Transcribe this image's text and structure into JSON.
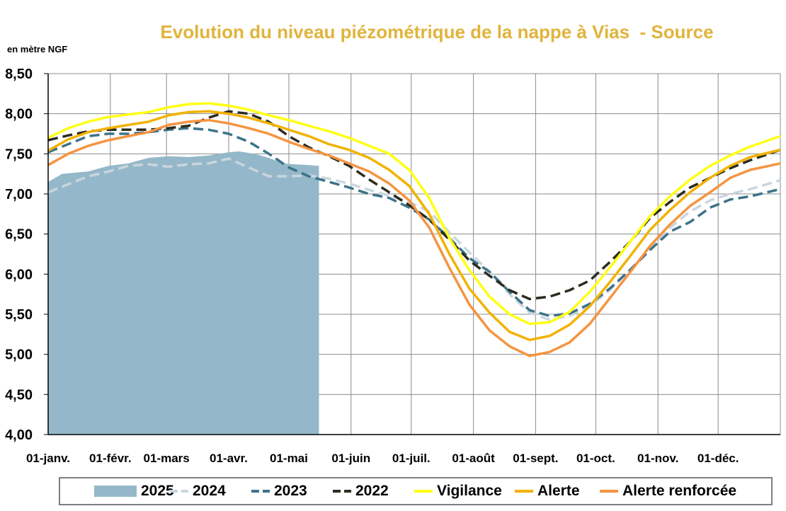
{
  "title": "Evolution du niveau piézométrique de la nappe à Vias  - Source",
  "unit_label": "en mètre NGF",
  "legend": [
    {
      "label": "2025",
      "color": "#94b8c9",
      "style": "area"
    },
    {
      "label": "2024",
      "color": "#c9d6de",
      "style": "dashed"
    },
    {
      "label": "2023",
      "color": "#3d7388",
      "style": "dashed"
    },
    {
      "label": "2022",
      "color": "#2b2b1f",
      "style": "dashed"
    },
    {
      "label": "Vigilance",
      "color": "#ffff14",
      "style": "solid"
    },
    {
      "label": "Alerte",
      "color": "#f2b200",
      "style": "solid"
    },
    {
      "label": "Alerte renforcée",
      "color": "#f59440",
      "style": "solid"
    }
  ],
  "chart_data": {
    "type": "line",
    "title": "Evolution du niveau piézométrique de la nappe à Vias  - Source",
    "ylabel": "en mètre NGF",
    "xlabel": "",
    "ylim": [
      4.0,
      8.5
    ],
    "xlim": [
      0,
      365
    ],
    "grid": true,
    "legend_position": "bottom",
    "y_ticks": [
      "4,00",
      "4,50",
      "5,00",
      "5,50",
      "6,00",
      "6,50",
      "7,00",
      "7,50",
      "8,00",
      "8,50"
    ],
    "x_ticks": [
      {
        "day": 0,
        "label": "01-janv."
      },
      {
        "day": 31,
        "label": "01-févr."
      },
      {
        "day": 59,
        "label": "01-mars"
      },
      {
        "day": 90,
        "label": "01-avr."
      },
      {
        "day": 120,
        "label": "01-mai"
      },
      {
        "day": 151,
        "label": "01-juin"
      },
      {
        "day": 181,
        "label": "01-juil."
      },
      {
        "day": 212,
        "label": "01-août"
      },
      {
        "day": 243,
        "label": "01-sept."
      },
      {
        "day": 273,
        "label": "01-oct."
      },
      {
        "day": 304,
        "label": "01-nov."
      },
      {
        "day": 334,
        "label": "01-déc."
      }
    ],
    "series": [
      {
        "name": "2025",
        "type": "area",
        "color": "#94b8c9",
        "x": [
          0,
          7,
          20,
          30,
          40,
          50,
          60,
          70,
          80,
          90,
          95,
          103,
          110,
          117,
          123,
          130,
          135
        ],
        "y": [
          7.15,
          7.25,
          7.28,
          7.35,
          7.38,
          7.45,
          7.47,
          7.46,
          7.48,
          7.52,
          7.53,
          7.5,
          7.45,
          7.38,
          7.37,
          7.36,
          7.35
        ]
      },
      {
        "name": "2024",
        "type": "line",
        "dash": "dashed",
        "color": "#c9d6de",
        "x": [
          0,
          10,
          20,
          30,
          40,
          50,
          60,
          70,
          80,
          90,
          100,
          110,
          120,
          130,
          140,
          150,
          160,
          170,
          180,
          190,
          200,
          210,
          220,
          230,
          240,
          250,
          260,
          270,
          280,
          290,
          300,
          310,
          320,
          330,
          340,
          350,
          365
        ],
        "y": [
          7.02,
          7.12,
          7.22,
          7.28,
          7.35,
          7.37,
          7.34,
          7.37,
          7.38,
          7.44,
          7.33,
          7.22,
          7.22,
          7.23,
          7.19,
          7.13,
          7.05,
          6.98,
          6.9,
          6.78,
          6.52,
          6.27,
          6.03,
          5.75,
          5.52,
          5.43,
          5.48,
          5.6,
          5.8,
          6.05,
          6.32,
          6.58,
          6.78,
          6.92,
          7.0,
          7.06,
          7.17
        ]
      },
      {
        "name": "2023",
        "type": "line",
        "dash": "dashed",
        "color": "#3d7388",
        "x": [
          0,
          10,
          20,
          30,
          40,
          50,
          60,
          70,
          80,
          90,
          100,
          110,
          120,
          130,
          140,
          150,
          160,
          170,
          180,
          190,
          200,
          210,
          220,
          230,
          240,
          250,
          260,
          270,
          280,
          290,
          300,
          310,
          320,
          330,
          340,
          350,
          365
        ],
        "y": [
          7.52,
          7.62,
          7.72,
          7.75,
          7.75,
          7.77,
          7.8,
          7.82,
          7.8,
          7.75,
          7.65,
          7.5,
          7.33,
          7.22,
          7.15,
          7.08,
          7.0,
          6.95,
          6.83,
          6.68,
          6.45,
          6.2,
          6.03,
          5.78,
          5.55,
          5.48,
          5.51,
          5.63,
          5.82,
          6.05,
          6.3,
          6.53,
          6.65,
          6.83,
          6.93,
          6.97,
          7.06
        ]
      },
      {
        "name": "2022",
        "type": "line",
        "dash": "dashed",
        "color": "#2b2b1f",
        "x": [
          0,
          10,
          20,
          30,
          40,
          50,
          60,
          70,
          80,
          90,
          100,
          110,
          120,
          130,
          140,
          150,
          160,
          170,
          180,
          190,
          200,
          210,
          220,
          230,
          240,
          250,
          260,
          270,
          280,
          290,
          300,
          310,
          320,
          330,
          340,
          350,
          365
        ],
        "y": [
          7.67,
          7.73,
          7.78,
          7.8,
          7.8,
          7.8,
          7.82,
          7.85,
          7.95,
          8.03,
          8.0,
          7.9,
          7.72,
          7.58,
          7.47,
          7.35,
          7.18,
          7.02,
          6.86,
          6.68,
          6.43,
          6.17,
          5.98,
          5.8,
          5.69,
          5.72,
          5.8,
          5.92,
          6.15,
          6.4,
          6.7,
          6.9,
          7.08,
          7.2,
          7.32,
          7.42,
          7.55
        ]
      },
      {
        "name": "Vigilance",
        "type": "line",
        "dash": "solid",
        "color": "#ffff14",
        "x": [
          0,
          10,
          20,
          30,
          40,
          50,
          60,
          70,
          80,
          90,
          100,
          110,
          120,
          130,
          140,
          150,
          160,
          170,
          180,
          190,
          200,
          210,
          220,
          230,
          240,
          250,
          260,
          270,
          280,
          290,
          300,
          310,
          320,
          330,
          340,
          350,
          365
        ],
        "y": [
          7.7,
          7.82,
          7.9,
          7.96,
          7.99,
          8.02,
          8.08,
          8.12,
          8.13,
          8.1,
          8.05,
          7.98,
          7.92,
          7.85,
          7.78,
          7.7,
          7.6,
          7.5,
          7.3,
          6.95,
          6.45,
          6.05,
          5.72,
          5.5,
          5.38,
          5.4,
          5.53,
          5.78,
          6.08,
          6.4,
          6.72,
          6.97,
          7.18,
          7.35,
          7.48,
          7.59,
          7.72
        ]
      },
      {
        "name": "Alerte",
        "type": "line",
        "dash": "solid",
        "color": "#f2b200",
        "x": [
          0,
          10,
          20,
          30,
          40,
          50,
          60,
          70,
          80,
          90,
          100,
          110,
          120,
          130,
          140,
          150,
          160,
          170,
          180,
          190,
          200,
          210,
          220,
          230,
          240,
          250,
          260,
          270,
          280,
          290,
          300,
          310,
          320,
          330,
          340,
          350,
          365
        ],
        "y": [
          7.54,
          7.68,
          7.77,
          7.82,
          7.86,
          7.9,
          7.98,
          8.02,
          8.03,
          8.0,
          7.95,
          7.88,
          7.8,
          7.72,
          7.62,
          7.55,
          7.45,
          7.3,
          7.1,
          6.75,
          6.25,
          5.82,
          5.52,
          5.28,
          5.18,
          5.23,
          5.37,
          5.6,
          5.9,
          6.22,
          6.55,
          6.8,
          7.02,
          7.2,
          7.35,
          7.46,
          7.55
        ]
      },
      {
        "name": "Alerte renforcée",
        "type": "line",
        "dash": "solid",
        "color": "#f59440",
        "x": [
          0,
          10,
          20,
          30,
          40,
          50,
          60,
          70,
          80,
          90,
          100,
          110,
          120,
          130,
          140,
          150,
          160,
          170,
          180,
          190,
          200,
          210,
          220,
          230,
          240,
          250,
          260,
          270,
          280,
          290,
          300,
          310,
          320,
          330,
          340,
          350,
          365
        ],
        "y": [
          7.36,
          7.5,
          7.6,
          7.67,
          7.72,
          7.77,
          7.86,
          7.9,
          7.92,
          7.88,
          7.82,
          7.75,
          7.65,
          7.56,
          7.48,
          7.38,
          7.28,
          7.13,
          6.92,
          6.58,
          6.08,
          5.62,
          5.3,
          5.1,
          4.98,
          5.03,
          5.15,
          5.38,
          5.7,
          6.02,
          6.35,
          6.62,
          6.85,
          7.02,
          7.2,
          7.3,
          7.38
        ]
      }
    ]
  }
}
